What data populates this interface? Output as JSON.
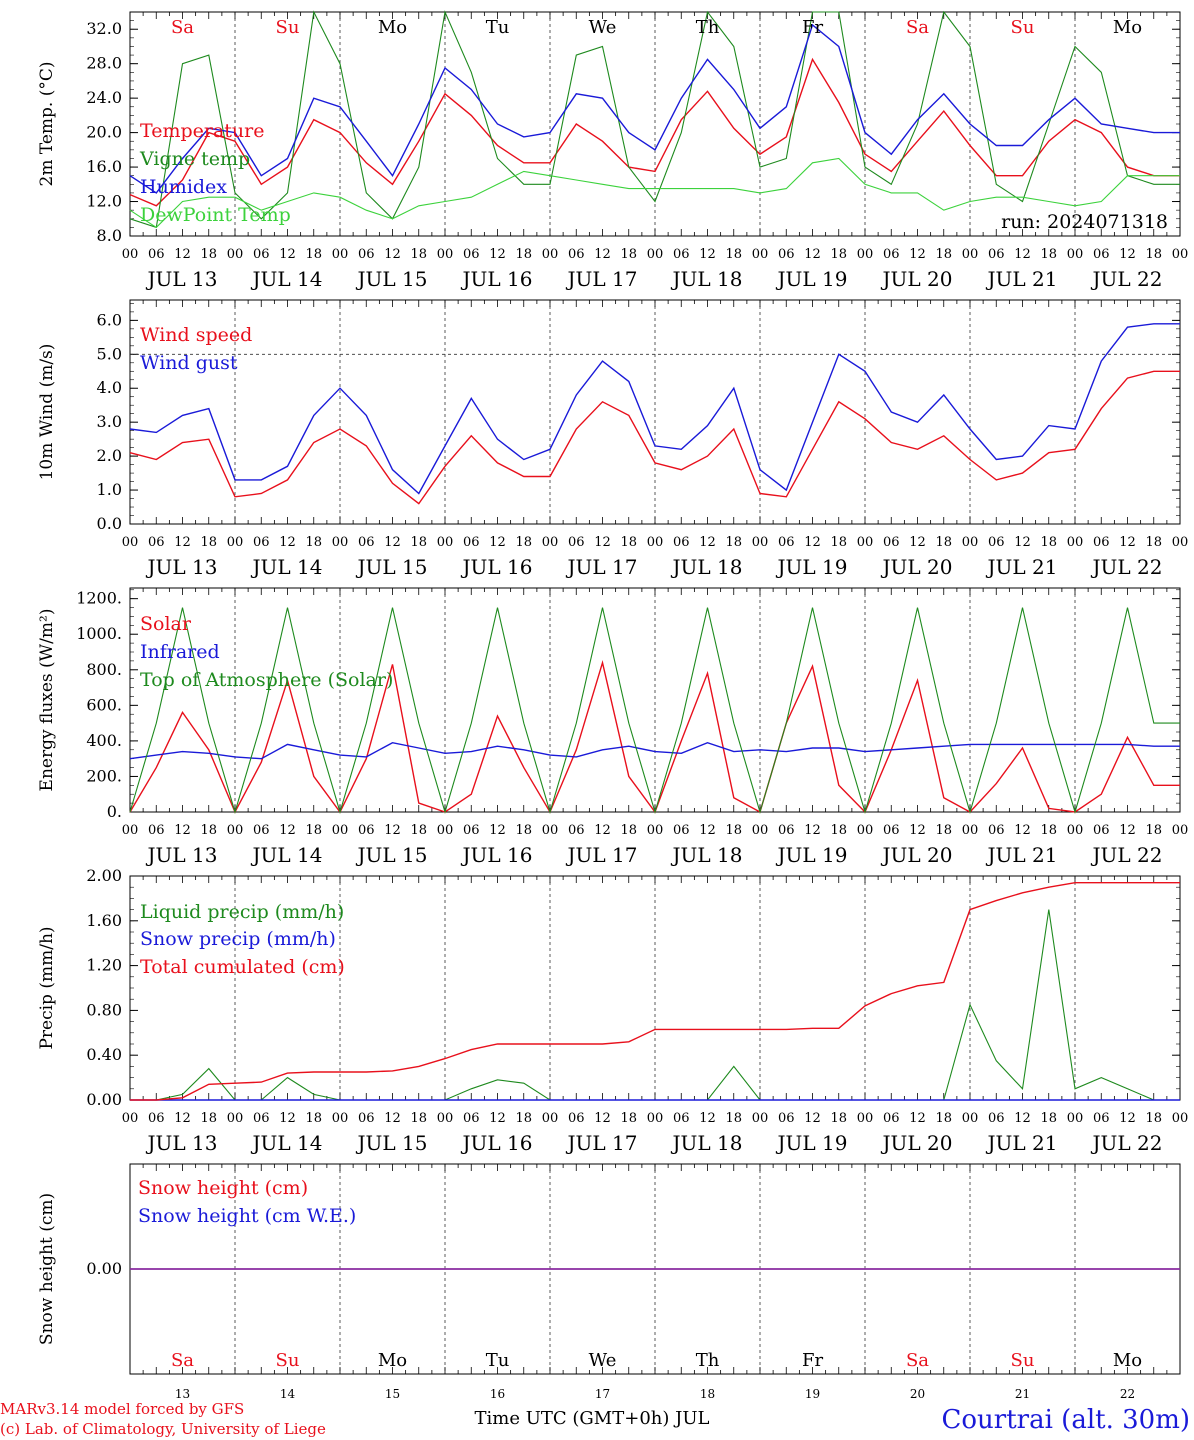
{
  "colors": {
    "red": "#e8101c",
    "blue": "#1a1ad8",
    "green": "#1e8a1e",
    "lightgreen": "#3cd23c",
    "purple": "#8a2ba0",
    "weekend": "#e8101c",
    "weekday": "#000000"
  },
  "run_label": "run: 2024071318",
  "days": [
    {
      "abbr": "Sa",
      "date": "JUL 13",
      "num": "13",
      "weekend": true
    },
    {
      "abbr": "Su",
      "date": "JUL 14",
      "num": "14",
      "weekend": true
    },
    {
      "abbr": "Mo",
      "date": "JUL 15",
      "num": "15",
      "weekend": false
    },
    {
      "abbr": "Tu",
      "date": "JUL 16",
      "num": "16",
      "weekend": false
    },
    {
      "abbr": "We",
      "date": "JUL 17",
      "num": "17",
      "weekend": false
    },
    {
      "abbr": "Th",
      "date": "JUL 18",
      "num": "18",
      "weekend": false
    },
    {
      "abbr": "Fr",
      "date": "JUL 19",
      "num": "19",
      "weekend": false
    },
    {
      "abbr": "Sa",
      "date": "JUL 20",
      "num": "20",
      "weekend": true
    },
    {
      "abbr": "Su",
      "date": "JUL 21",
      "num": "21",
      "weekend": true
    },
    {
      "abbr": "Mo",
      "date": "JUL 22",
      "num": "22",
      "weekend": false
    }
  ],
  "hour_labels": [
    "00",
    "06",
    "12",
    "18"
  ],
  "footer": {
    "model": "MARv3.14 model forced by GFS",
    "credit": "(c) Lab. of Climatology, University of Liege",
    "xlabel": "Time UTC (GMT+0h) JUL",
    "station": "Courtrai (alt. 30m)"
  },
  "chart_data": [
    {
      "type": "line",
      "ylabel": "2m Temp. (°C)",
      "ylim": [
        8,
        34
      ],
      "yticks": [
        "32.0",
        "28.0",
        "24.0",
        "20.0",
        "16.0",
        "12.0",
        "8.0"
      ],
      "x_hours": [
        0,
        6,
        12,
        18,
        24,
        30,
        36,
        42,
        48,
        54,
        60,
        66,
        72,
        78,
        84,
        90,
        96,
        102,
        108,
        114,
        120,
        126,
        132,
        138,
        144,
        150,
        156,
        162,
        168,
        174,
        180,
        186,
        192,
        198,
        204,
        210,
        216,
        222,
        228,
        234
      ],
      "series": [
        {
          "name": "Temperature",
          "color": "red",
          "values": [
            12.8,
            11.5,
            14.5,
            20,
            19,
            14,
            16,
            21.5,
            20,
            16.5,
            14,
            19,
            24.5,
            22,
            18.5,
            16.5,
            16.5,
            21,
            19,
            16,
            15.5,
            21.5,
            24.8,
            20.5,
            17.5,
            19.5,
            28.5,
            23.5,
            17.5,
            15.5,
            19,
            22.5,
            18.5,
            15,
            15,
            19,
            21.5,
            20,
            16,
            15
          ]
        },
        {
          "name": "Vigne temp",
          "color": "green",
          "values": [
            10,
            9,
            28,
            29,
            13,
            10,
            13,
            34,
            28,
            13,
            10,
            16,
            34,
            27,
            17,
            14,
            14,
            29,
            30,
            16,
            12,
            20,
            34,
            30,
            16,
            17,
            34,
            34,
            16,
            14,
            21,
            34,
            30,
            14,
            12,
            21,
            30,
            27,
            15,
            14
          ]
        },
        {
          "name": "Humidex",
          "color": "blue",
          "values": [
            15,
            13,
            17,
            20.5,
            20,
            15,
            17,
            24,
            23,
            19,
            15,
            21,
            27.5,
            25,
            21,
            19.5,
            20,
            24.5,
            24,
            20,
            18,
            24,
            28.5,
            25,
            20.5,
            23,
            32.5,
            30,
            20,
            17.5,
            21.5,
            24.5,
            21,
            18.5,
            18.5,
            21.5,
            24,
            21,
            20.5,
            20
          ]
        },
        {
          "name": "DewPoint Temp",
          "color": "lightgreen",
          "values": [
            11,
            9,
            12,
            12.5,
            12.5,
            11,
            12,
            13,
            12.5,
            11,
            10,
            11.5,
            12,
            12.5,
            14,
            15.5,
            15,
            14.5,
            14,
            13.5,
            13.5,
            13.5,
            13.5,
            13.5,
            13,
            13.5,
            16.5,
            17,
            14,
            13,
            13,
            11,
            12,
            12.5,
            12.5,
            12,
            11.5,
            12,
            15,
            15
          ]
        }
      ]
    },
    {
      "type": "line",
      "ylabel": "10m Wind (m/s)",
      "ylim": [
        0,
        6.6
      ],
      "yticks": [
        "6.0",
        "5.0",
        "4.0",
        "3.0",
        "2.0",
        "1.0",
        "0.0"
      ],
      "reference_line": 5,
      "x_hours": [
        0,
        6,
        12,
        18,
        24,
        30,
        36,
        42,
        48,
        54,
        60,
        66,
        72,
        78,
        84,
        90,
        96,
        102,
        108,
        114,
        120,
        126,
        132,
        138,
        144,
        150,
        156,
        162,
        168,
        174,
        180,
        186,
        192,
        198,
        204,
        210,
        216,
        222,
        228,
        234
      ],
      "series": [
        {
          "name": "Wind speed",
          "color": "red",
          "values": [
            2.1,
            1.9,
            2.4,
            2.5,
            0.8,
            0.9,
            1.3,
            2.4,
            2.8,
            2.3,
            1.2,
            0.6,
            1.7,
            2.6,
            1.8,
            1.4,
            1.4,
            2.8,
            3.6,
            3.2,
            1.8,
            1.6,
            2.0,
            2.8,
            0.9,
            0.8,
            2.2,
            3.6,
            3.1,
            2.4,
            2.2,
            2.6,
            1.9,
            1.3,
            1.5,
            2.1,
            2.2,
            3.4,
            4.3,
            4.5
          ]
        },
        {
          "name": "Wind gust",
          "color": "blue",
          "values": [
            2.8,
            2.7,
            3.2,
            3.4,
            1.3,
            1.3,
            1.7,
            3.2,
            4.0,
            3.2,
            1.6,
            0.9,
            2.3,
            3.7,
            2.5,
            1.9,
            2.2,
            3.8,
            4.8,
            4.2,
            2.3,
            2.2,
            2.9,
            4.0,
            1.6,
            1.0,
            3.0,
            5.0,
            4.5,
            3.3,
            3.0,
            3.8,
            2.8,
            1.9,
            2.0,
            2.9,
            2.8,
            4.8,
            5.8,
            5.9
          ]
        }
      ]
    },
    {
      "type": "line",
      "ylabel": "Energy fluxes (W/m²)",
      "ylim": [
        0,
        1260
      ],
      "yticks": [
        "1200.",
        "1000.",
        "800.",
        "600.",
        "400.",
        "200.",
        "0."
      ],
      "x_hours": [
        0,
        6,
        12,
        18,
        24,
        30,
        36,
        42,
        48,
        54,
        60,
        66,
        72,
        78,
        84,
        90,
        96,
        102,
        108,
        114,
        120,
        126,
        132,
        138,
        144,
        150,
        156,
        162,
        168,
        174,
        180,
        186,
        192,
        198,
        204,
        210,
        216,
        222,
        228,
        234
      ],
      "series": [
        {
          "name": "Solar",
          "color": "red",
          "values": [
            0,
            250,
            560,
            350,
            0,
            280,
            740,
            200,
            0,
            300,
            830,
            50,
            0,
            100,
            540,
            250,
            0,
            350,
            840,
            200,
            0,
            400,
            780,
            80,
            0,
            500,
            820,
            150,
            0,
            350,
            740,
            80,
            0,
            160,
            360,
            20,
            0,
            100,
            420,
            150
          ]
        },
        {
          "name": "Infrared",
          "color": "blue",
          "values": [
            300,
            320,
            340,
            330,
            310,
            300,
            380,
            350,
            320,
            310,
            390,
            360,
            330,
            340,
            370,
            350,
            320,
            310,
            350,
            370,
            340,
            330,
            390,
            340,
            350,
            340,
            360,
            360,
            340,
            350,
            360,
            370,
            380,
            380,
            380,
            380,
            380,
            380,
            380,
            370
          ]
        },
        {
          "name": "Top of Atmosphere (Solar)",
          "color": "green",
          "values": [
            0,
            500,
            1150,
            500,
            0,
            500,
            1150,
            500,
            0,
            500,
            1150,
            500,
            0,
            500,
            1150,
            500,
            0,
            500,
            1150,
            500,
            0,
            500,
            1150,
            500,
            0,
            500,
            1150,
            500,
            0,
            500,
            1150,
            500,
            0,
            500,
            1150,
            500,
            0,
            500,
            1150,
            500
          ]
        }
      ]
    },
    {
      "type": "line",
      "ylabel": "Precip (mm/h)",
      "ylim": [
        0,
        2
      ],
      "yticks": [
        "2.00",
        "1.60",
        "1.20",
        "0.80",
        "0.40",
        "0.00"
      ],
      "x_hours": [
        0,
        6,
        12,
        18,
        24,
        30,
        36,
        42,
        48,
        54,
        60,
        66,
        72,
        78,
        84,
        90,
        96,
        102,
        108,
        114,
        120,
        126,
        132,
        138,
        144,
        150,
        156,
        162,
        168,
        174,
        180,
        186,
        192,
        198,
        204,
        210,
        216,
        222,
        228,
        234
      ],
      "series": [
        {
          "name": "Liquid precip (mm/h)",
          "color": "green",
          "values": [
            0,
            0,
            0.05,
            0.28,
            0,
            0,
            0.2,
            0.05,
            0,
            0,
            0,
            0,
            0,
            0.1,
            0.18,
            0.15,
            0,
            0,
            0,
            0,
            0,
            0,
            0,
            0.3,
            0,
            0,
            0,
            0,
            0,
            0,
            0,
            0,
            0.85,
            0.35,
            0.1,
            1.7,
            0.1,
            0.2,
            0.1,
            0
          ]
        },
        {
          "name": "Snow precip (mm/h)",
          "color": "blue",
          "values": [
            0,
            0,
            0,
            0,
            0,
            0,
            0,
            0,
            0,
            0,
            0,
            0,
            0,
            0,
            0,
            0,
            0,
            0,
            0,
            0,
            0,
            0,
            0,
            0,
            0,
            0,
            0,
            0,
            0,
            0,
            0,
            0,
            0,
            0,
            0,
            0,
            0,
            0,
            0,
            0
          ]
        },
        {
          "name": "Total cumulated (cm)",
          "color": "red",
          "values": [
            0,
            0,
            0.02,
            0.14,
            0.15,
            0.16,
            0.24,
            0.25,
            0.25,
            0.25,
            0.26,
            0.3,
            0.37,
            0.45,
            0.5,
            0.5,
            0.5,
            0.5,
            0.5,
            0.52,
            0.63,
            0.63,
            0.63,
            0.63,
            0.63,
            0.63,
            0.64,
            0.64,
            0.84,
            0.95,
            1.02,
            1.05,
            1.7,
            1.78,
            1.85,
            1.9,
            1.94,
            1.94,
            1.94,
            1.94
          ]
        }
      ]
    },
    {
      "type": "line",
      "ylabel": "Snow height (cm)",
      "ylim": [
        -1,
        1
      ],
      "yticks": [
        "0.00"
      ],
      "series": [
        {
          "name": "Snow height (cm)",
          "color": "red",
          "values": [
            0,
            0
          ]
        },
        {
          "name": "Snow height (cm W.E.)",
          "color": "blue",
          "values": [
            0,
            0
          ]
        }
      ]
    }
  ]
}
